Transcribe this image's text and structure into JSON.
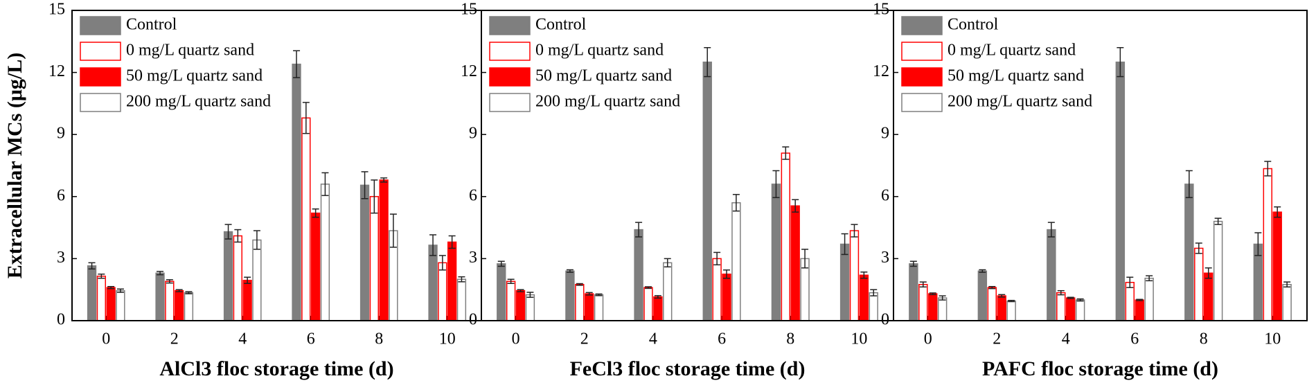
{
  "chart_data": [
    {
      "type": "bar",
      "ylabel": "Extracellular MCs (μg/L)",
      "xlabel": "AlCl3 floc storage time (d)",
      "categories": [
        0,
        2,
        4,
        6,
        8,
        10
      ],
      "ylim": [
        0,
        15
      ],
      "yticks": [
        0,
        3,
        6,
        9,
        12,
        15
      ],
      "legend": "upper left",
      "series": [
        {
          "name": "Control",
          "color": "#7f7f7f",
          "edgecolor": "#7f7f7f",
          "values": [
            2.65,
            2.3,
            4.3,
            12.4,
            6.55,
            3.65
          ],
          "errors": [
            0.15,
            0.08,
            0.35,
            0.65,
            0.65,
            0.5
          ]
        },
        {
          "name": "0 mg/L quartz sand",
          "color": "#ffffff",
          "edgecolor": "#ff0000",
          "values": [
            2.15,
            1.9,
            4.1,
            9.8,
            6.0,
            2.8
          ],
          "errors": [
            0.1,
            0.08,
            0.3,
            0.75,
            0.8,
            0.35
          ]
        },
        {
          "name": "50 mg/L quartz sand",
          "color": "#ff0000",
          "edgecolor": "#ff0000",
          "values": [
            1.6,
            1.45,
            1.95,
            5.2,
            6.8,
            3.8
          ],
          "errors": [
            0.05,
            0.05,
            0.15,
            0.2,
            0.1,
            0.3
          ]
        },
        {
          "name": "200 mg/L quartz sand",
          "color": "#ffffff",
          "edgecolor": "#7f7f7f",
          "values": [
            1.45,
            1.35,
            3.9,
            6.6,
            4.35,
            2.0
          ],
          "errors": [
            0.08,
            0.05,
            0.45,
            0.55,
            0.8,
            0.12
          ]
        }
      ]
    },
    {
      "type": "bar",
      "xlabel": "FeCl3 floc storage time (d)",
      "categories": [
        0,
        2,
        4,
        6,
        8,
        10
      ],
      "ylim": [
        0,
        15
      ],
      "yticks": [
        0,
        3,
        6,
        9,
        12,
        15
      ],
      "legend": "upper left",
      "series": [
        {
          "name": "Control",
          "color": "#7f7f7f",
          "edgecolor": "#7f7f7f",
          "values": [
            2.75,
            2.4,
            4.4,
            12.5,
            6.6,
            3.7
          ],
          "errors": [
            0.12,
            0.06,
            0.35,
            0.7,
            0.65,
            0.5
          ]
        },
        {
          "name": "0 mg/L quartz sand",
          "color": "#ffffff",
          "edgecolor": "#ff0000",
          "values": [
            1.9,
            1.75,
            1.6,
            3.0,
            8.1,
            4.35
          ],
          "errors": [
            0.1,
            0.04,
            0.04,
            0.3,
            0.3,
            0.3
          ]
        },
        {
          "name": "50 mg/L quartz sand",
          "color": "#ff0000",
          "edgecolor": "#ff0000",
          "values": [
            1.45,
            1.3,
            1.15,
            2.25,
            5.55,
            2.2
          ],
          "errors": [
            0.05,
            0.06,
            0.06,
            0.2,
            0.3,
            0.15
          ]
        },
        {
          "name": "200 mg/L quartz sand",
          "color": "#ffffff",
          "edgecolor": "#7f7f7f",
          "values": [
            1.25,
            1.25,
            2.8,
            5.7,
            3.0,
            1.35
          ],
          "errors": [
            0.12,
            0.04,
            0.2,
            0.4,
            0.45,
            0.15
          ]
        }
      ]
    },
    {
      "type": "bar",
      "xlabel": "PAFC floc storage time (d)",
      "categories": [
        0,
        2,
        4,
        6,
        8,
        10
      ],
      "ylim": [
        0,
        15
      ],
      "yticks": [
        0,
        3,
        6,
        9,
        12,
        15
      ],
      "legend": "upper left",
      "series": [
        {
          "name": "Control",
          "color": "#7f7f7f",
          "edgecolor": "#7f7f7f",
          "values": [
            2.75,
            2.4,
            4.4,
            12.5,
            6.6,
            3.7
          ],
          "errors": [
            0.12,
            0.06,
            0.35,
            0.7,
            0.65,
            0.55
          ]
        },
        {
          "name": "0 mg/L quartz sand",
          "color": "#ffffff",
          "edgecolor": "#ff0000",
          "values": [
            1.75,
            1.6,
            1.35,
            1.85,
            3.5,
            7.35
          ],
          "errors": [
            0.12,
            0.05,
            0.1,
            0.25,
            0.25,
            0.35
          ]
        },
        {
          "name": "50 mg/L quartz sand",
          "color": "#ff0000",
          "edgecolor": "#ff0000",
          "values": [
            1.3,
            1.2,
            1.1,
            1.0,
            2.3,
            5.25
          ],
          "errors": [
            0.04,
            0.06,
            0.03,
            0.03,
            0.25,
            0.25
          ]
        },
        {
          "name": "200 mg/L quartz sand",
          "color": "#ffffff",
          "edgecolor": "#7f7f7f",
          "values": [
            1.1,
            0.95,
            1.0,
            2.05,
            4.8,
            1.75
          ],
          "errors": [
            0.1,
            0.03,
            0.05,
            0.12,
            0.15,
            0.12
          ]
        }
      ]
    }
  ]
}
